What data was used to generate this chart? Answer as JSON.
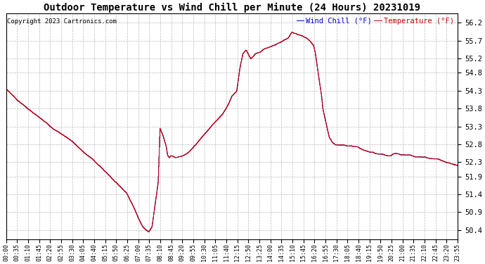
{
  "title": "Outdoor Temperature vs Wind Chill per Minute (24 Hours) 20231019",
  "copyright": "Copyright 2023 Cartronics.com",
  "legend_wind_chill": "Wind Chill (°F)",
  "legend_temperature": "Temperature (°F)",
  "wind_chill_color": "#0000cc",
  "temperature_color": "#cc0000",
  "background_color": "#ffffff",
  "grid_color": "#aaaaaa",
  "yticks": [
    50.4,
    50.9,
    51.4,
    51.9,
    52.3,
    52.8,
    53.3,
    53.8,
    54.3,
    54.8,
    55.2,
    55.7,
    56.2
  ],
  "ylim": [
    50.15,
    56.45
  ],
  "xtick_labels": [
    "00:00",
    "00:35",
    "01:10",
    "01:45",
    "02:20",
    "02:55",
    "03:30",
    "04:05",
    "04:40",
    "05:15",
    "05:50",
    "06:25",
    "07:00",
    "07:35",
    "08:10",
    "08:45",
    "09:20",
    "09:55",
    "10:30",
    "11:05",
    "11:40",
    "12:15",
    "12:50",
    "13:25",
    "14:00",
    "14:35",
    "15:10",
    "15:45",
    "16:20",
    "16:55",
    "17:30",
    "18:05",
    "18:40",
    "19:15",
    "19:50",
    "20:25",
    "21:00",
    "21:35",
    "22:10",
    "22:45",
    "23:20",
    "23:55"
  ],
  "title_fontsize": 10,
  "copyright_fontsize": 6.5,
  "legend_fontsize": 7.5,
  "ytick_fontsize": 7.5,
  "xtick_fontsize": 6.0,
  "figsize": [
    6.9,
    3.75
  ],
  "dpi": 100
}
